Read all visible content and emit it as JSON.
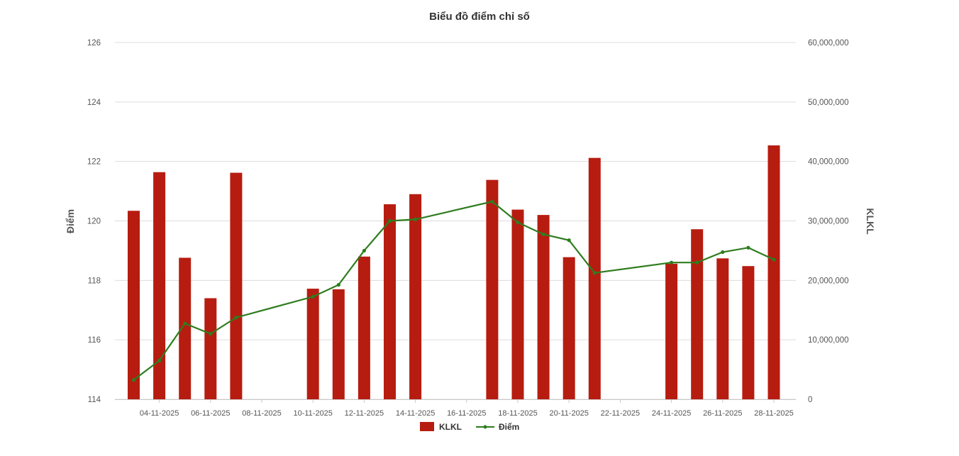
{
  "chart_data": {
    "type": "bar",
    "title": "Biểu đồ điểm chỉ số",
    "ylabel_left": "Điểm",
    "ylabel_right": "KLKL",
    "ylim_left": [
      114,
      126
    ],
    "ylim_right": [
      0,
      60000000
    ],
    "yticks_left": [
      "114",
      "116",
      "118",
      "120",
      "122",
      "124",
      "126"
    ],
    "yticks_right": [
      "0",
      "10,000,000",
      "20,000,000",
      "30,000,000",
      "40,000,000",
      "50,000,000",
      "60,000,000"
    ],
    "grid": true,
    "legend_position": "bottom",
    "colors": {
      "bar": "#b71c10",
      "line": "#2e7d1f"
    },
    "x_tick_labels": [
      "04-11-2025",
      "06-11-2025",
      "08-11-2025",
      "10-11-2025",
      "12-11-2025",
      "14-11-2025",
      "16-11-2025",
      "18-11-2025",
      "20-11-2025",
      "22-11-2025",
      "24-11-2025",
      "26-11-2025",
      "28-11-2025"
    ],
    "categories": [
      "03-11-2025",
      "04-11-2025",
      "05-11-2025",
      "06-11-2025",
      "07-11-2025",
      "10-11-2025",
      "11-11-2025",
      "12-11-2025",
      "13-11-2025",
      "14-11-2025",
      "17-11-2025",
      "18-11-2025",
      "19-11-2025",
      "20-11-2025",
      "21-11-2025",
      "24-11-2025",
      "25-11-2025",
      "26-11-2025",
      "27-11-2025",
      "28-11-2025"
    ],
    "series": [
      {
        "name": "KLKL",
        "type": "bar",
        "axis": "right",
        "values": [
          31700000,
          38200000,
          23800000,
          17000000,
          38100000,
          18600000,
          18500000,
          24000000,
          32800000,
          34500000,
          36900000,
          31900000,
          31000000,
          23900000,
          40600000,
          22800000,
          28600000,
          23700000,
          22400000,
          42700000
        ]
      },
      {
        "name": "Điểm",
        "type": "line",
        "axis": "left",
        "values": [
          114.65,
          115.3,
          116.55,
          116.2,
          116.75,
          117.45,
          117.85,
          119.0,
          120.0,
          120.05,
          120.65,
          119.95,
          119.55,
          119.35,
          118.25,
          118.6,
          118.6,
          118.95,
          119.1,
          118.7
        ]
      }
    ]
  }
}
